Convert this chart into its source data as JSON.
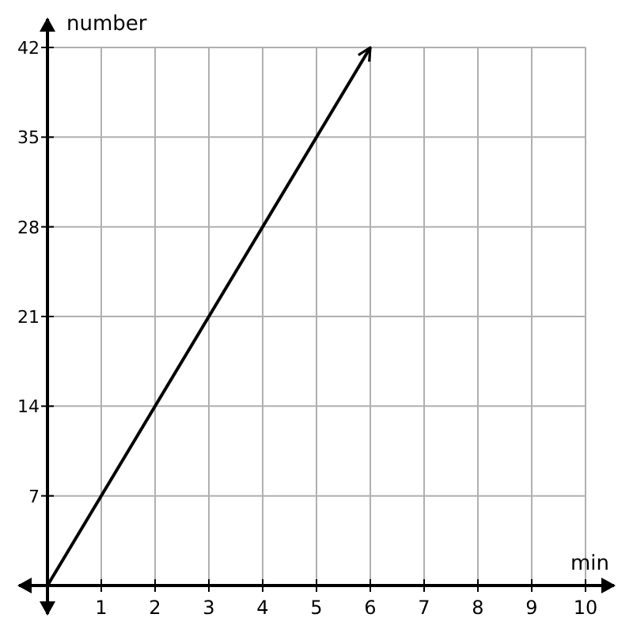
{
  "chart_data": {
    "type": "line",
    "xlabel": "min",
    "ylabel": "number",
    "x": [
      0,
      6
    ],
    "series": [
      {
        "color": "#000000",
        "values": [
          0,
          42
        ]
      }
    ],
    "xlim": [
      0,
      10
    ],
    "ylim": [
      0,
      42
    ],
    "xticks": [
      {
        "value": 0,
        "label": null
      },
      1,
      2,
      3,
      4,
      5,
      6,
      7,
      8,
      9,
      10
    ],
    "yticks": [
      {
        "value": 0,
        "label": null
      },
      7,
      14,
      21,
      28,
      35,
      42
    ],
    "grid": true,
    "marker": "none",
    "line_style": "solid"
  }
}
